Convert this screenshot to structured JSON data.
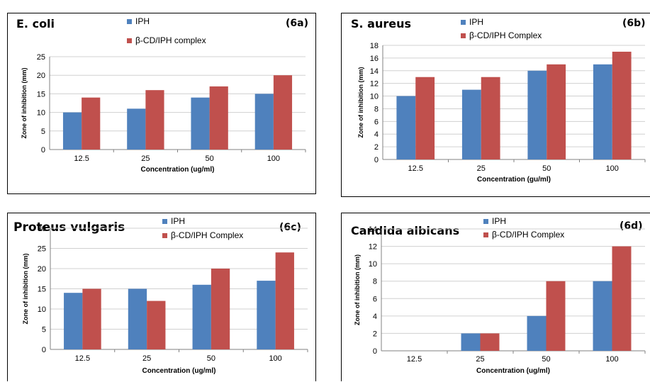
{
  "colors": {
    "iph": "#4f81bd",
    "complex": "#c0504d"
  },
  "chart_data": [
    {
      "type": "bar",
      "title": "E. coli",
      "tag": "(6a)",
      "categories": [
        "12.5",
        "25",
        "50",
        "100"
      ],
      "series": [
        {
          "name": "IPH",
          "values": [
            10,
            11,
            14,
            15
          ]
        },
        {
          "name": "β-CD/IPH complex",
          "values": [
            14,
            16,
            17,
            20
          ]
        }
      ],
      "xlabel": "Concentration (ug/ml)",
      "ylabel": "Zone of inhibition (mm)",
      "ylim": [
        0,
        25
      ],
      "yticks": [
        "0",
        "5",
        "10",
        "15",
        "20",
        "25"
      ],
      "grid": true
    },
    {
      "type": "bar",
      "title": "S. aureus",
      "tag": "(6b)",
      "categories": [
        "12.5",
        "25",
        "50",
        "100"
      ],
      "series": [
        {
          "name": "IPH",
          "values": [
            10,
            11,
            14,
            15
          ]
        },
        {
          "name": "β-CD/IPH Complex",
          "values": [
            13,
            13,
            15,
            17
          ]
        }
      ],
      "xlabel": "Concentration (gu/ml)",
      "ylabel": "Zone of inhibition (mm)",
      "ylim": [
        0,
        18
      ],
      "yticks": [
        "0",
        "2",
        "4",
        "6",
        "8",
        "10",
        "12",
        "14",
        "16",
        "18"
      ],
      "grid": true
    },
    {
      "type": "bar",
      "title": "Proteus vulgaris",
      "tag": "(6c)",
      "categories": [
        "12.5",
        "25",
        "50",
        "100"
      ],
      "series": [
        {
          "name": "IPH",
          "values": [
            14,
            15,
            16,
            17
          ]
        },
        {
          "name": "β-CD/IPH Complex",
          "values": [
            15,
            12,
            20,
            24
          ]
        }
      ],
      "xlabel": "Concentration (ug/ml)",
      "ylabel": "Zone of inhibition (mm)",
      "ylim": [
        0,
        30
      ],
      "yticks": [
        "0",
        "5",
        "10",
        "15",
        "20",
        "25",
        "30"
      ],
      "grid": true
    },
    {
      "type": "bar",
      "title": "Candida albicans",
      "tag": "(6d)",
      "categories": [
        "12.5",
        "25",
        "50",
        "100"
      ],
      "series": [
        {
          "name": "IPH",
          "values": [
            0,
            2,
            4,
            8
          ]
        },
        {
          "name": "β-CD/IPH Complex",
          "values": [
            0,
            2,
            8,
            12
          ]
        }
      ],
      "xlabel": "Concentration (ug/ml)",
      "ylabel": "Zone of inhibition (mm)",
      "ylim": [
        0,
        14
      ],
      "yticks": [
        "0",
        "2",
        "4",
        "6",
        "8",
        "10",
        "12",
        "14"
      ],
      "grid": true
    }
  ]
}
